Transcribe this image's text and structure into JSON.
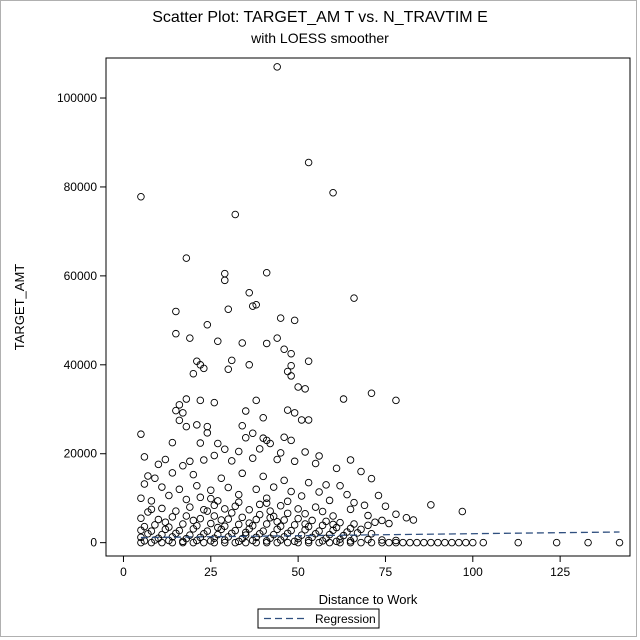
{
  "chart_data": {
    "type": "scatter",
    "title": "Scatter Plot: TARGET_AM T vs. N_TRAVTIM E",
    "subtitle": "with LOESS smoother",
    "xlabel": "Distance to Work",
    "ylabel": "TARGET_AMT",
    "xlim": [
      -5,
      145
    ],
    "ylim": [
      -3000,
      109000
    ],
    "x_ticks": [
      0,
      25,
      50,
      75,
      100,
      125
    ],
    "y_ticks": [
      0,
      20000,
      40000,
      60000,
      80000,
      100000
    ],
    "x_tick_labels": [
      "0",
      "25",
      "50",
      "75",
      "100",
      "125"
    ],
    "y_tick_labels": [
      "0",
      "20000",
      "40000",
      "60000",
      "80000",
      "100000"
    ],
    "legend": {
      "placement": "bottom-center",
      "entries": [
        "Regression"
      ]
    },
    "series": [
      {
        "kind": "points",
        "marker": "open-circle",
        "color": "#000000",
        "points": [
          [
            44,
            107000
          ],
          [
            5,
            77800
          ],
          [
            53,
            85500
          ],
          [
            60,
            78700
          ],
          [
            32,
            73800
          ],
          [
            18,
            64000
          ],
          [
            29,
            60500
          ],
          [
            41,
            60700
          ],
          [
            29,
            59000
          ],
          [
            30,
            52500
          ],
          [
            66,
            55000
          ],
          [
            36,
            56200
          ],
          [
            38,
            53500
          ],
          [
            37,
            53200
          ],
          [
            15,
            52000
          ],
          [
            45,
            50500
          ],
          [
            24,
            49000
          ],
          [
            49,
            50000
          ],
          [
            15,
            47000
          ],
          [
            19,
            46000
          ],
          [
            27,
            45300
          ],
          [
            44,
            46000
          ],
          [
            34,
            44900
          ],
          [
            41,
            44800
          ],
          [
            46,
            43500
          ],
          [
            48,
            42500
          ],
          [
            31,
            41000
          ],
          [
            21,
            40800
          ],
          [
            22,
            40000
          ],
          [
            23,
            39200
          ],
          [
            30,
            39000
          ],
          [
            53,
            40800
          ],
          [
            48,
            39800
          ],
          [
            36,
            40000
          ],
          [
            47,
            38500
          ],
          [
            20,
            38000
          ],
          [
            48,
            37500
          ],
          [
            52,
            34600
          ],
          [
            50,
            35000
          ],
          [
            71,
            33600
          ],
          [
            78,
            32000
          ],
          [
            63,
            32300
          ],
          [
            38,
            32000
          ],
          [
            16,
            31000
          ],
          [
            18,
            32300
          ],
          [
            22,
            32000
          ],
          [
            26,
            31500
          ],
          [
            15,
            29700
          ],
          [
            17,
            29200
          ],
          [
            35,
            29600
          ],
          [
            40,
            28100
          ],
          [
            47,
            29800
          ],
          [
            49,
            29200
          ],
          [
            51,
            27600
          ],
          [
            53,
            27600
          ],
          [
            16,
            27500
          ],
          [
            18,
            26100
          ],
          [
            21,
            26500
          ],
          [
            24,
            26100
          ],
          [
            34,
            26300
          ],
          [
            24,
            24700
          ],
          [
            37,
            24600
          ],
          [
            5,
            24400
          ],
          [
            40,
            23500
          ],
          [
            46,
            23700
          ],
          [
            41,
            23000
          ],
          [
            48,
            23000
          ],
          [
            14,
            22500
          ],
          [
            22,
            22400
          ],
          [
            27,
            22300
          ],
          [
            35,
            23600
          ],
          [
            42,
            22300
          ],
          [
            29,
            21000
          ],
          [
            33,
            20500
          ],
          [
            39,
            21100
          ],
          [
            45,
            20200
          ],
          [
            52,
            20400
          ],
          [
            56,
            19500
          ],
          [
            65,
            18600
          ],
          [
            6,
            19300
          ],
          [
            10,
            17600
          ],
          [
            12,
            18700
          ],
          [
            17,
            17300
          ],
          [
            19,
            18300
          ],
          [
            23,
            18600
          ],
          [
            26,
            19600
          ],
          [
            31,
            18400
          ],
          [
            37,
            19000
          ],
          [
            44,
            18700
          ],
          [
            49,
            18300
          ],
          [
            55,
            17800
          ],
          [
            61,
            16700
          ],
          [
            68,
            16000
          ],
          [
            7,
            15000
          ],
          [
            9,
            14500
          ],
          [
            14,
            15700
          ],
          [
            20,
            15300
          ],
          [
            28,
            14500
          ],
          [
            34,
            15600
          ],
          [
            40,
            14900
          ],
          [
            46,
            14000
          ],
          [
            53,
            13500
          ],
          [
            58,
            13000
          ],
          [
            62,
            12800
          ],
          [
            71,
            14400
          ],
          [
            6,
            13200
          ],
          [
            11,
            12500
          ],
          [
            16,
            12000
          ],
          [
            21,
            12800
          ],
          [
            25,
            11800
          ],
          [
            30,
            12400
          ],
          [
            38,
            12000
          ],
          [
            43,
            12500
          ],
          [
            48,
            11500
          ],
          [
            56,
            11400
          ],
          [
            64,
            10800
          ],
          [
            73,
            10600
          ],
          [
            5,
            10000
          ],
          [
            8,
            9400
          ],
          [
            13,
            10600
          ],
          [
            18,
            9700
          ],
          [
            22,
            10200
          ],
          [
            27,
            9400
          ],
          [
            33,
            10800
          ],
          [
            41,
            10000
          ],
          [
            47,
            9300
          ],
          [
            51,
            10500
          ],
          [
            59,
            9500
          ],
          [
            66,
            9000
          ],
          [
            69,
            8400
          ],
          [
            75,
            8200
          ],
          [
            78,
            6400
          ],
          [
            81,
            5600
          ],
          [
            83,
            5100
          ],
          [
            88,
            8500
          ],
          [
            97,
            7000
          ],
          [
            74,
            5000
          ],
          [
            76,
            4300
          ],
          [
            70,
            6100
          ],
          [
            72,
            4600
          ],
          [
            65,
            7500
          ],
          [
            60,
            6000
          ],
          [
            57,
            7000
          ],
          [
            55,
            8000
          ],
          [
            52,
            6500
          ],
          [
            50,
            7600
          ],
          [
            45,
            8300
          ],
          [
            42,
            7100
          ],
          [
            39,
            8600
          ],
          [
            36,
            7400
          ],
          [
            32,
            8200
          ],
          [
            29,
            7600
          ],
          [
            26,
            8400
          ],
          [
            23,
            7400
          ],
          [
            19,
            8000
          ],
          [
            15,
            7100
          ],
          [
            11,
            7700
          ],
          [
            7,
            6900
          ],
          [
            5,
            5500
          ],
          [
            10,
            5200
          ],
          [
            14,
            5800
          ],
          [
            18,
            6000
          ],
          [
            22,
            5400
          ],
          [
            26,
            6000
          ],
          [
            30,
            5300
          ],
          [
            34,
            5700
          ],
          [
            38,
            5200
          ],
          [
            42,
            5600
          ],
          [
            46,
            5100
          ],
          [
            50,
            5400
          ],
          [
            54,
            5000
          ],
          [
            58,
            4800
          ],
          [
            62,
            4500
          ],
          [
            66,
            4200
          ],
          [
            70,
            3900
          ],
          [
            6,
            3600
          ],
          [
            9,
            4000
          ],
          [
            13,
            3500
          ],
          [
            17,
            4200
          ],
          [
            21,
            3800
          ],
          [
            25,
            4300
          ],
          [
            29,
            3700
          ],
          [
            33,
            4100
          ],
          [
            37,
            3800
          ],
          [
            41,
            4200
          ],
          [
            45,
            3700
          ],
          [
            49,
            4000
          ],
          [
            53,
            3600
          ],
          [
            57,
            3900
          ],
          [
            61,
            3400
          ],
          [
            65,
            3200
          ],
          [
            68,
            3000
          ],
          [
            5,
            2800
          ],
          [
            8,
            2600
          ],
          [
            12,
            3000
          ],
          [
            16,
            2700
          ],
          [
            20,
            3100
          ],
          [
            24,
            2600
          ],
          [
            28,
            3000
          ],
          [
            32,
            2700
          ],
          [
            36,
            3100
          ],
          [
            40,
            2600
          ],
          [
            44,
            3000
          ],
          [
            48,
            2700
          ],
          [
            52,
            2900
          ],
          [
            56,
            2600
          ],
          [
            60,
            2800
          ],
          [
            64,
            2400
          ],
          [
            67,
            2200
          ],
          [
            71,
            2000
          ],
          [
            7,
            2000
          ],
          [
            11,
            1800
          ],
          [
            15,
            2100
          ],
          [
            19,
            1700
          ],
          [
            23,
            2000
          ],
          [
            27,
            1800
          ],
          [
            31,
            2100
          ],
          [
            35,
            1700
          ],
          [
            39,
            2000
          ],
          [
            43,
            1800
          ],
          [
            47,
            2100
          ],
          [
            51,
            1700
          ],
          [
            55,
            2000
          ],
          [
            59,
            1800
          ],
          [
            63,
            1600
          ],
          [
            5,
            1200
          ],
          [
            10,
            1000
          ],
          [
            14,
            1300
          ],
          [
            18,
            900
          ],
          [
            22,
            1200
          ],
          [
            26,
            1000
          ],
          [
            30,
            1300
          ],
          [
            34,
            900
          ],
          [
            38,
            1200
          ],
          [
            42,
            1000
          ],
          [
            46,
            1300
          ],
          [
            50,
            900
          ],
          [
            54,
            1200
          ],
          [
            58,
            1000
          ],
          [
            62,
            800
          ],
          [
            66,
            900
          ],
          [
            70,
            700
          ],
          [
            74,
            600
          ],
          [
            78,
            500
          ],
          [
            6,
            400
          ],
          [
            9,
            600
          ],
          [
            13,
            500
          ],
          [
            17,
            300
          ],
          [
            21,
            500
          ],
          [
            25,
            400
          ],
          [
            29,
            600
          ],
          [
            33,
            300
          ],
          [
            37,
            500
          ],
          [
            41,
            400
          ],
          [
            45,
            600
          ],
          [
            49,
            300
          ],
          [
            53,
            500
          ],
          [
            57,
            400
          ],
          [
            61,
            300
          ],
          [
            65,
            400
          ],
          [
            5,
            0
          ],
          [
            8,
            0
          ],
          [
            11,
            0
          ],
          [
            14,
            0
          ],
          [
            17,
            0
          ],
          [
            20,
            0
          ],
          [
            23,
            0
          ],
          [
            26,
            0
          ],
          [
            29,
            0
          ],
          [
            32,
            0
          ],
          [
            35,
            0
          ],
          [
            38,
            0
          ],
          [
            41,
            0
          ],
          [
            44,
            0
          ],
          [
            47,
            0
          ],
          [
            50,
            0
          ],
          [
            53,
            0
          ],
          [
            56,
            0
          ],
          [
            59,
            0
          ],
          [
            62,
            0
          ],
          [
            65,
            0
          ],
          [
            68,
            0
          ],
          [
            71,
            0
          ],
          [
            74,
            0
          ],
          [
            76,
            0
          ],
          [
            78,
            0
          ],
          [
            80,
            0
          ],
          [
            82,
            0
          ],
          [
            84,
            0
          ],
          [
            86,
            0
          ],
          [
            88,
            0
          ],
          [
            90,
            0
          ],
          [
            92,
            0
          ],
          [
            94,
            0
          ],
          [
            96,
            0
          ],
          [
            98,
            0
          ],
          [
            100,
            0
          ],
          [
            103,
            0
          ],
          [
            113,
            0
          ],
          [
            124,
            0
          ],
          [
            133,
            0
          ],
          [
            142,
            0
          ],
          [
            27,
            3400
          ],
          [
            35,
            2300
          ],
          [
            43,
            5900
          ],
          [
            31,
            6700
          ],
          [
            24,
            7100
          ],
          [
            39,
            6300
          ],
          [
            47,
            6600
          ],
          [
            20,
            5000
          ],
          [
            12,
            4600
          ],
          [
            8,
            7500
          ],
          [
            28,
            5100
          ],
          [
            36,
            4400
          ],
          [
            44,
            4700
          ],
          [
            52,
            4200
          ],
          [
            60,
            4100
          ],
          [
            33,
            9100
          ],
          [
            25,
            9900
          ],
          [
            41,
            8900
          ]
        ]
      },
      {
        "kind": "line",
        "name": "Regression",
        "color": "#2f4f7f",
        "points": [
          [
            5,
            1150
          ],
          [
            142,
            2400
          ]
        ]
      }
    ]
  }
}
